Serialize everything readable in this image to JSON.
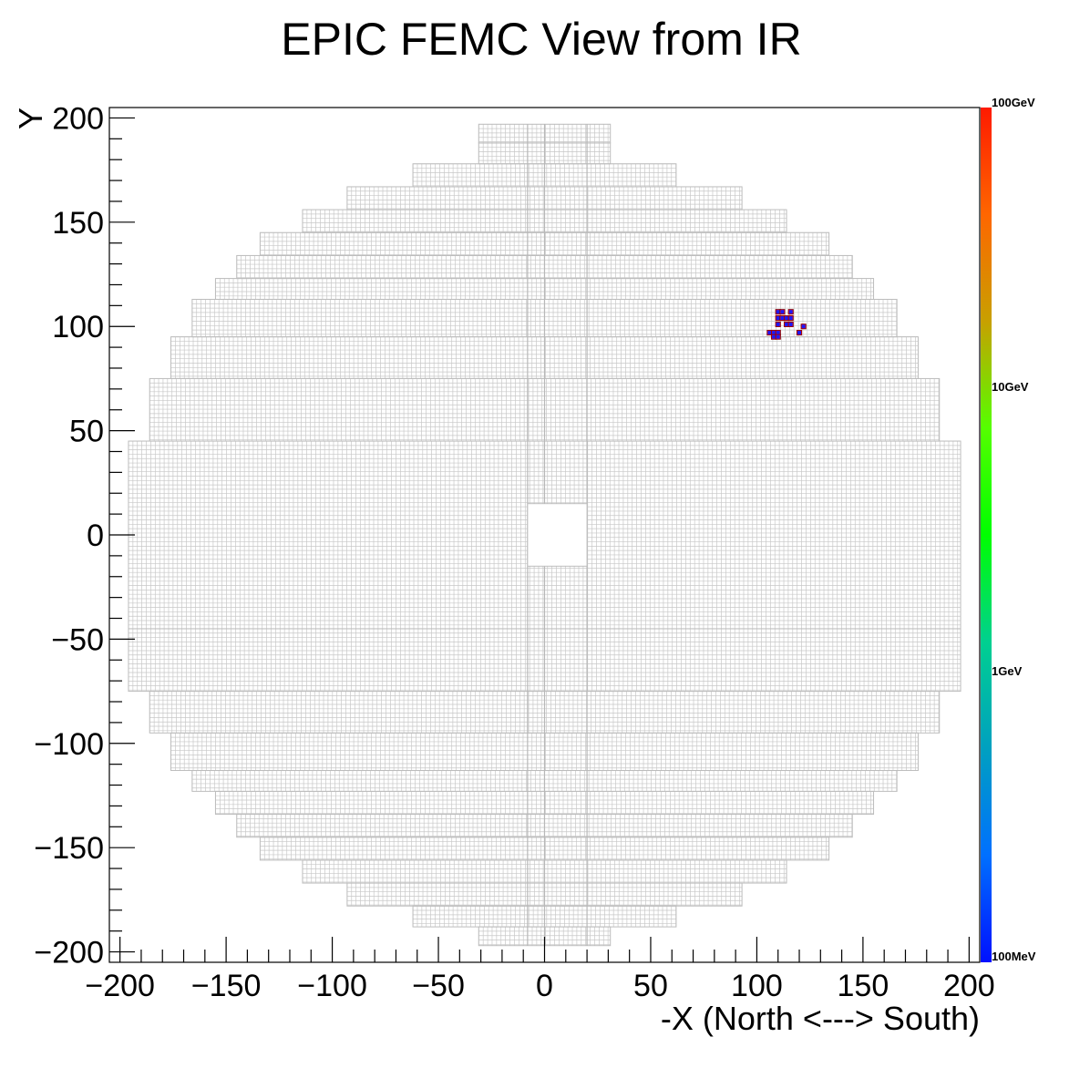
{
  "chart_data": {
    "type": "heatmap",
    "title": "EPIC FEMC View from IR",
    "xlabel": "-X (North <---> South)",
    "ylabel": "Y",
    "xlim": [
      -205,
      205
    ],
    "ylim": [
      -205,
      205
    ],
    "x_ticks": [
      -200,
      -150,
      -100,
      -50,
      0,
      50,
      100,
      150,
      200
    ],
    "y_ticks": [
      -200,
      -150,
      -100,
      -50,
      0,
      50,
      100,
      150,
      200
    ],
    "x_tick_labels": [
      "−200",
      "−150",
      "−100",
      "−50",
      "0",
      "50",
      "100",
      "150",
      "200"
    ],
    "y_tick_labels": [
      "−200",
      "−150",
      "−100",
      "−50",
      "0",
      "50",
      "100",
      "150",
      "200"
    ],
    "grid": false,
    "detector": {
      "beam_hole": {
        "x": [
          -8,
          20
        ],
        "y": [
          -15,
          15
        ]
      },
      "outline_rows": [
        {
          "y": [
            -197,
            -188
          ],
          "x": [
            -31,
            31
          ]
        },
        {
          "y": [
            -188,
            -178
          ],
          "x": [
            -62,
            62
          ]
        },
        {
          "y": [
            -178,
            -167
          ],
          "x": [
            -93,
            93
          ]
        },
        {
          "y": [
            -167,
            -156
          ],
          "x": [
            -114,
            114
          ]
        },
        {
          "y": [
            -156,
            -145
          ],
          "x": [
            -134,
            134
          ]
        },
        {
          "y": [
            -145,
            -134
          ],
          "x": [
            -145,
            145
          ]
        },
        {
          "y": [
            -134,
            -123
          ],
          "x": [
            -155,
            155
          ]
        },
        {
          "y": [
            -123,
            -113
          ],
          "x": [
            -166,
            166
          ]
        },
        {
          "y": [
            -113,
            -95
          ],
          "x": [
            -176,
            176
          ]
        },
        {
          "y": [
            -95,
            -75
          ],
          "x": [
            -186,
            186
          ]
        },
        {
          "y": [
            -75,
            -45
          ],
          "x": [
            -196,
            196
          ]
        },
        {
          "y": [
            -45,
            45
          ],
          "x": [
            -196,
            196
          ]
        },
        {
          "y": [
            45,
            75
          ],
          "x": [
            -186,
            186
          ]
        },
        {
          "y": [
            75,
            95
          ],
          "x": [
            -176,
            176
          ]
        },
        {
          "y": [
            95,
            113
          ],
          "x": [
            -166,
            166
          ]
        },
        {
          "y": [
            113,
            123
          ],
          "x": [
            -155,
            155
          ]
        },
        {
          "y": [
            123,
            134
          ],
          "x": [
            -145,
            145
          ]
        },
        {
          "y": [
            134,
            145
          ],
          "x": [
            -134,
            134
          ]
        },
        {
          "y": [
            145,
            156
          ],
          "x": [
            -114,
            114
          ]
        },
        {
          "y": [
            156,
            167
          ],
          "x": [
            -93,
            93
          ]
        },
        {
          "y": [
            167,
            178
          ],
          "x": [
            -62,
            62
          ]
        },
        {
          "y": [
            178,
            188
          ],
          "x": [
            -31,
            31
          ]
        },
        {
          "y": [
            188,
            197
          ],
          "x": [
            -31,
            31
          ]
        }
      ]
    },
    "hits": [
      {
        "x": 110,
        "y": 107,
        "energy": "100GeV"
      },
      {
        "x": 112,
        "y": 107,
        "energy": "100GeV"
      },
      {
        "x": 116,
        "y": 107,
        "energy": "100GeV"
      },
      {
        "x": 110,
        "y": 104,
        "energy": "100GeV"
      },
      {
        "x": 112,
        "y": 104,
        "energy": "100GeV"
      },
      {
        "x": 114,
        "y": 104,
        "energy": "100GeV"
      },
      {
        "x": 116,
        "y": 104,
        "energy": "100GeV"
      },
      {
        "x": 110,
        "y": 101,
        "energy": "100GeV"
      },
      {
        "x": 114,
        "y": 101,
        "energy": "100GeV"
      },
      {
        "x": 116,
        "y": 101,
        "energy": "100GeV"
      },
      {
        "x": 122,
        "y": 100,
        "energy": "100GeV"
      },
      {
        "x": 106,
        "y": 97,
        "energy": "100GeV"
      },
      {
        "x": 108,
        "y": 97,
        "energy": "100GeV"
      },
      {
        "x": 110,
        "y": 97,
        "energy": "100GeV"
      },
      {
        "x": 120,
        "y": 97,
        "energy": "100GeV"
      },
      {
        "x": 108,
        "y": 95,
        "energy": "100GeV"
      },
      {
        "x": 110,
        "y": 95,
        "energy": "100GeV"
      }
    ],
    "colorbar": {
      "scale": "log",
      "labels": [
        "100GeV",
        "10GeV",
        "1GeV",
        "100MeV"
      ],
      "colors": [
        "#ff1a00",
        "#ff6600",
        "#c8a000",
        "#55ff00",
        "#00ff00",
        "#00d090",
        "#00a0c0",
        "#0070ff",
        "#0010ff"
      ]
    },
    "colors": {
      "cell_line": "#c8c8c8",
      "hit_fill": "#ff0000",
      "hit_marker": "#1a1aff"
    }
  }
}
